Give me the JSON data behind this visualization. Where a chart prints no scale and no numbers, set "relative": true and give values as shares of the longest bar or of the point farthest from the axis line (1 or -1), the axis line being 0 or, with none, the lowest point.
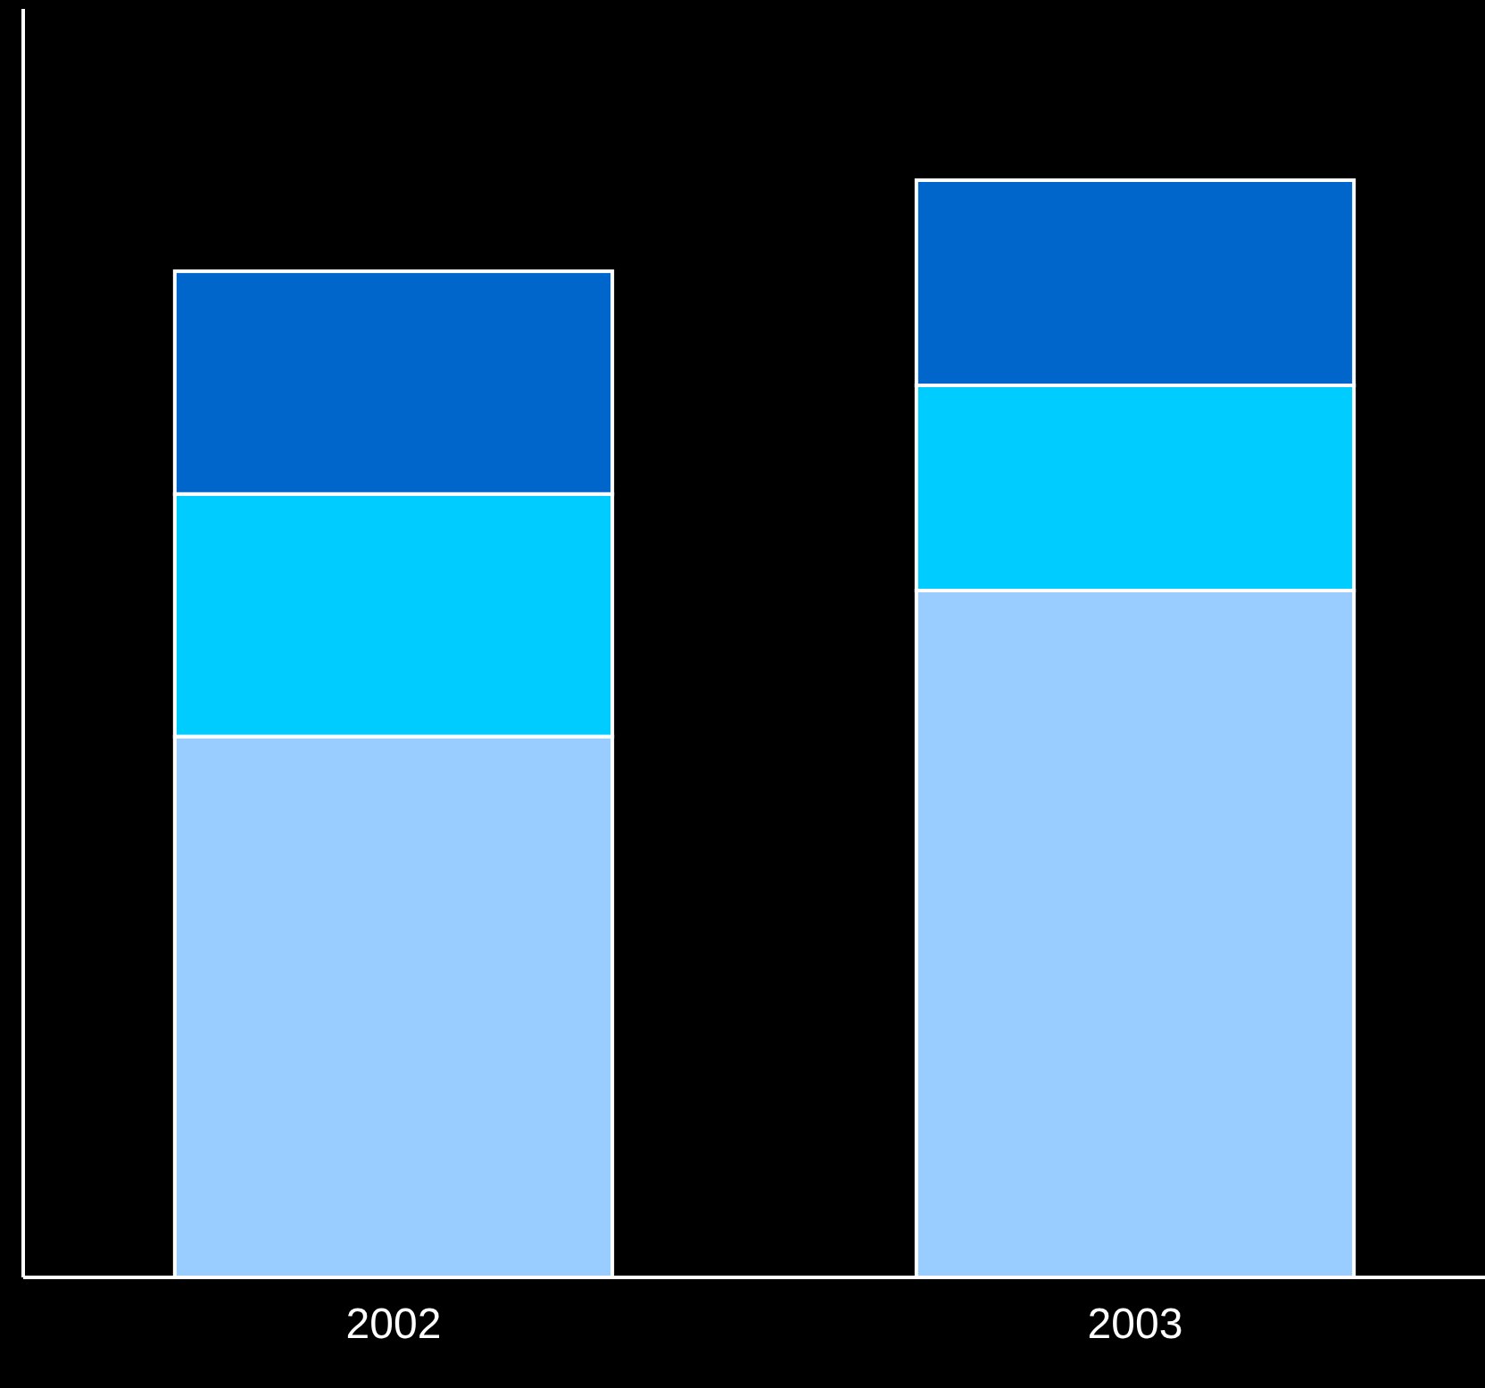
{
  "chart_data": {
    "type": "bar",
    "stacked": true,
    "relative": true,
    "categories": [
      "2002",
      "2003"
    ],
    "series": [
      {
        "color": "#99ccff",
        "values": [
          0.493,
          0.626
        ]
      },
      {
        "color": "#00ccff",
        "values": [
          0.221,
          0.187
        ]
      },
      {
        "color": "#0066cc",
        "values": [
          0.203,
          0.187
        ]
      }
    ]
  }
}
